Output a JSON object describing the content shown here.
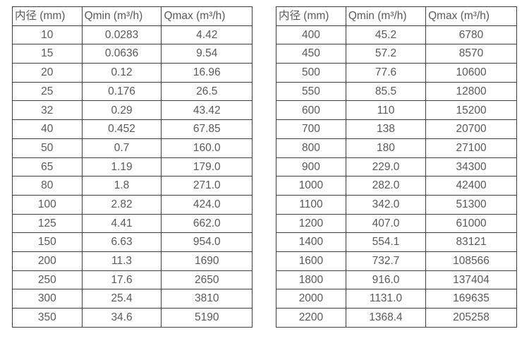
{
  "colors": {
    "background": "#ffffff",
    "border": "#3f3f3f",
    "text": "#595959"
  },
  "tables": [
    {
      "name": "flow-table-small-diameters",
      "headers": [
        "内径 (mm)",
        "Qmin (m³/h)",
        "Qmax (m³/h)"
      ],
      "rows": [
        [
          "10",
          "0.0283",
          "4.42"
        ],
        [
          "15",
          "0.0636",
          "9.54"
        ],
        [
          "20",
          "0.12",
          "16.96"
        ],
        [
          "25",
          "0.176",
          "26.5"
        ],
        [
          "32",
          "0.29",
          "43.42"
        ],
        [
          "40",
          "0.452",
          "67.85"
        ],
        [
          "50",
          "0.7",
          "160.0"
        ],
        [
          "65",
          "1.19",
          "179.0"
        ],
        [
          "80",
          "1.8",
          "271.0"
        ],
        [
          "100",
          "2.82",
          "424.0"
        ],
        [
          "125",
          "4.41",
          "662.0"
        ],
        [
          "150",
          "6.63",
          "954.0"
        ],
        [
          "200",
          "11.3",
          "1690"
        ],
        [
          "250",
          "17.6",
          "2650"
        ],
        [
          "300",
          "25.4",
          "3810"
        ],
        [
          "350",
          "34.6",
          "5190"
        ]
      ]
    },
    {
      "name": "flow-table-large-diameters",
      "headers": [
        "内径 (mm)",
        "Qmin (m³/h)",
        "Qmax (m³/h)"
      ],
      "rows": [
        [
          "400",
          "45.2",
          "6780"
        ],
        [
          "450",
          "57.2",
          "8570"
        ],
        [
          "500",
          "77.6",
          "10600"
        ],
        [
          "550",
          "85.5",
          "12800"
        ],
        [
          "600",
          "110",
          "15200"
        ],
        [
          "700",
          "138",
          "20700"
        ],
        [
          "800",
          "180",
          "27100"
        ],
        [
          "900",
          "229.0",
          "34300"
        ],
        [
          "1000",
          "282.0",
          "42400"
        ],
        [
          "1100",
          "342.0",
          "51300"
        ],
        [
          "1200",
          "407.0",
          "61000"
        ],
        [
          "1400",
          "554.1",
          "83121"
        ],
        [
          "1600",
          "732.7",
          "108566"
        ],
        [
          "1800",
          "916.0",
          "137404"
        ],
        [
          "2000",
          "1131.0",
          "169635"
        ],
        [
          "2200",
          "1368.4",
          "205258"
        ]
      ]
    }
  ]
}
